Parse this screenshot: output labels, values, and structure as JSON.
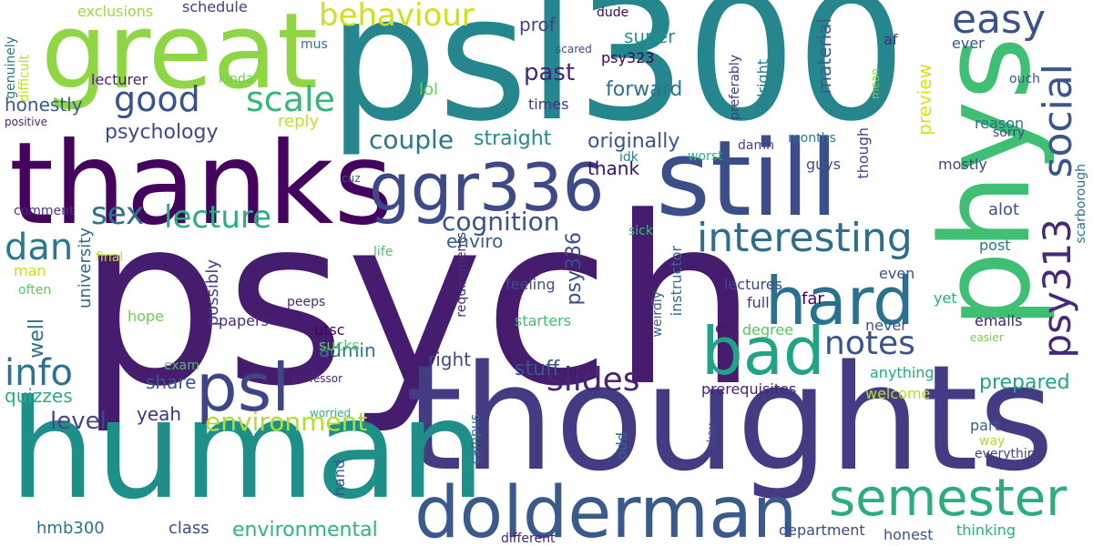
{
  "words": [
    {
      "text": "psych",
      "color": "#451c6e"
    },
    {
      "text": "psl300",
      "color": "#25878d"
    },
    {
      "text": "thoughts",
      "color": "#433c83"
    },
    {
      "text": "human",
      "color": "#1f8f89"
    },
    {
      "text": "thanks",
      "color": "#44045e"
    },
    {
      "text": "great",
      "color": "#8fd644"
    },
    {
      "text": "still",
      "color": "#3c4e8a"
    },
    {
      "text": "phys",
      "color": "#3fbf73"
    },
    {
      "text": "dolderman",
      "color": "#3a5a8b"
    },
    {
      "text": "ggr336",
      "color": "#3e4a88"
    },
    {
      "text": "hard",
      "color": "#2a718e"
    },
    {
      "text": "bad",
      "color": "#21a386"
    },
    {
      "text": "psl",
      "color": "#3d4788"
    },
    {
      "text": "semester",
      "color": "#2aae80"
    },
    {
      "text": "easy",
      "color": "#3a538b"
    },
    {
      "text": "interesting",
      "color": "#2d6e8e"
    },
    {
      "text": "social",
      "color": "#3a568c"
    },
    {
      "text": "behaviour",
      "color": "#cde11d"
    },
    {
      "text": "slides",
      "color": "#482475"
    },
    {
      "text": "notes",
      "color": "#3a538b"
    },
    {
      "text": "scale",
      "color": "#35b779"
    },
    {
      "text": "good",
      "color": "#3b518b"
    },
    {
      "text": "lecture",
      "color": "#2aae80"
    },
    {
      "text": "info",
      "color": "#2c738e"
    },
    {
      "text": "dan",
      "color": "#2a788e"
    },
    {
      "text": "sex",
      "color": "#2d718e"
    },
    {
      "text": "psy313",
      "color": "#482878"
    },
    {
      "text": "cognition",
      "color": "#3b528b"
    },
    {
      "text": "couple",
      "color": "#2b758e"
    },
    {
      "text": "environment",
      "color": "#b5de2b"
    },
    {
      "text": "environmental",
      "color": "#2fb47c"
    },
    {
      "text": "level",
      "color": "#3e4989"
    },
    {
      "text": "prepared",
      "color": "#20a486"
    },
    {
      "text": "originally",
      "color": "#3a548c"
    },
    {
      "text": "forward",
      "color": "#2c728e"
    },
    {
      "text": "straight",
      "color": "#238a8d"
    },
    {
      "text": "psychology",
      "color": "#3e4989"
    },
    {
      "text": "stuff",
      "color": "#3a548c"
    },
    {
      "text": "psy336",
      "color": "#3c4f8a"
    },
    {
      "text": "past",
      "color": "#482575"
    },
    {
      "text": "prof",
      "color": "#414287"
    },
    {
      "text": "super",
      "color": "#1f968b"
    },
    {
      "text": "thank",
      "color": "#35126a"
    },
    {
      "text": "enviro",
      "color": "#34608d"
    },
    {
      "text": "right",
      "color": "#3e4a89"
    },
    {
      "text": "share",
      "color": "#39568c"
    },
    {
      "text": "yeah",
      "color": "#46307e"
    },
    {
      "text": "admin",
      "color": "#2b758e"
    },
    {
      "text": "material",
      "color": "#375b8d"
    },
    {
      "text": "preview",
      "color": "#d8e219"
    },
    {
      "text": "schedule",
      "color": "#424086"
    },
    {
      "text": "exclusions",
      "color": "#a0da39"
    },
    {
      "text": "lol",
      "color": "#65cb5e"
    },
    {
      "text": "honestly",
      "color": "#365c8d"
    },
    {
      "text": "lecturer",
      "color": "#482173"
    },
    {
      "text": "reply",
      "color": "#c5e021"
    },
    {
      "text": "quizzes",
      "color": "#29af7f"
    },
    {
      "text": "hmb300",
      "color": "#2c738e"
    },
    {
      "text": "class",
      "color": "#3e4c8a"
    },
    {
      "text": "university",
      "color": "#32648e"
    },
    {
      "text": "well",
      "color": "#2e6f8e"
    },
    {
      "text": "possibly",
      "color": "#433d84"
    },
    {
      "text": "requirements",
      "color": "#472c7a"
    },
    {
      "text": "alot",
      "color": "#3b528b"
    },
    {
      "text": "far",
      "color": "#440154"
    },
    {
      "text": "mostly",
      "color": "#3f4788"
    },
    {
      "text": "ever",
      "color": "#3a548c"
    },
    {
      "text": "genuinely",
      "color": "#2a768e"
    },
    {
      "text": "difficult",
      "color": "#bddf26"
    },
    {
      "text": "positive",
      "color": "#482374"
    },
    {
      "text": "comment",
      "color": "#463480"
    },
    {
      "text": "final",
      "color": "#c0df25"
    },
    {
      "text": "man",
      "color": "#c2df23"
    },
    {
      "text": "often",
      "color": "#5ec962"
    },
    {
      "text": "hope",
      "color": "#6ece58"
    },
    {
      "text": "exam",
      "color": "#4ac16d"
    },
    {
      "text": "papers",
      "color": "#472d7b"
    },
    {
      "text": "utsc",
      "color": "#440154"
    },
    {
      "text": "sucks",
      "color": "#5ec962"
    },
    {
      "text": "professor",
      "color": "#482677"
    },
    {
      "text": "worried",
      "color": "#2db27d"
    },
    {
      "text": "hand",
      "color": "#3c508b"
    },
    {
      "text": "campus",
      "color": "#2c718e"
    },
    {
      "text": "different",
      "color": "#482576"
    },
    {
      "text": "odd",
      "color": "#32658e"
    },
    {
      "text": "instructor",
      "color": "#2f6c8e"
    },
    {
      "text": "weirdly",
      "color": "#34618d"
    },
    {
      "text": "okay",
      "color": "#3e4989"
    },
    {
      "text": "department",
      "color": "#3e4989"
    },
    {
      "text": "honest",
      "color": "#3a548c"
    },
    {
      "text": "thinking",
      "color": "#2ab07f"
    },
    {
      "text": "prerequisites",
      "color": "#482374"
    },
    {
      "text": "welcome",
      "color": "#b8de29"
    },
    {
      "text": "anything",
      "color": "#23a983"
    },
    {
      "text": "never",
      "color": "#3a548c"
    },
    {
      "text": "degree",
      "color": "#58c765"
    },
    {
      "text": "starters",
      "color": "#42be71"
    },
    {
      "text": "feeling",
      "color": "#3d4e8a"
    },
    {
      "text": "eh",
      "color": "#481769"
    },
    {
      "text": "full",
      "color": "#453882"
    },
    {
      "text": "lectures",
      "color": "#3e4989"
    },
    {
      "text": "even",
      "color": "#3c4f8a"
    },
    {
      "text": "emails",
      "color": "#482173"
    },
    {
      "text": "yet",
      "color": "#25ac82"
    },
    {
      "text": "easier",
      "color": "#75d054"
    },
    {
      "text": "post",
      "color": "#2c728e"
    },
    {
      "text": "scarborough",
      "color": "#2e6e8e"
    },
    {
      "text": "sick",
      "color": "#3dbc74"
    },
    {
      "text": "life",
      "color": "#4ac16d"
    },
    {
      "text": "peeps",
      "color": "#482979"
    },
    {
      "text": "guys",
      "color": "#3b528b"
    },
    {
      "text": "months",
      "color": "#2a788e"
    },
    {
      "text": "worst",
      "color": "#2db27d"
    },
    {
      "text": "idk",
      "color": "#25848e"
    },
    {
      "text": "cuz",
      "color": "#3a538b"
    },
    {
      "text": "damn",
      "color": "#424086"
    },
    {
      "text": "though",
      "color": "#414487"
    },
    {
      "text": "alright",
      "color": "#287c8e"
    },
    {
      "text": "preferably",
      "color": "#453781"
    },
    {
      "text": "psy323",
      "color": "#440154"
    },
    {
      "text": "times",
      "color": "#463480"
    },
    {
      "text": "scared",
      "color": "#3f4889"
    },
    {
      "text": "dude",
      "color": "#440154"
    },
    {
      "text": "af",
      "color": "#482979"
    },
    {
      "text": "mean",
      "color": "#7fd34e"
    },
    {
      "text": "ouch",
      "color": "#3a548c"
    },
    {
      "text": "reason",
      "color": "#2d708e"
    },
    {
      "text": "sorry",
      "color": "#3e4a89"
    },
    {
      "text": "part",
      "color": "#355f8d"
    },
    {
      "text": "way",
      "color": "#addc30"
    },
    {
      "text": "everything",
      "color": "#414287"
    },
    {
      "text": "mus",
      "color": "#2c728e"
    },
    {
      "text": "kinda",
      "color": "#6ccd5a"
    }
  ]
}
